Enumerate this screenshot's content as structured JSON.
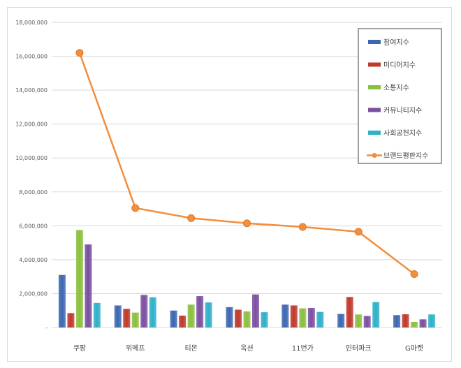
{
  "chart_data": {
    "type": "bar",
    "categories": [
      "쿠팡",
      "위메프",
      "티몬",
      "옥션",
      "11번가",
      "인터파크",
      "G마켓"
    ],
    "series": [
      {
        "name": "참여지수",
        "color": "#3c67b1",
        "values": [
          3100000,
          1300000,
          1000000,
          1200000,
          1350000,
          800000,
          730000
        ]
      },
      {
        "name": "미디어지수",
        "color": "#c0392b",
        "values": [
          850000,
          1100000,
          700000,
          1050000,
          1300000,
          1800000,
          780000
        ]
      },
      {
        "name": "소통지수",
        "color": "#8bbf3f",
        "values": [
          5750000,
          880000,
          1350000,
          950000,
          1130000,
          770000,
          330000
        ]
      },
      {
        "name": "커뮤니티지수",
        "color": "#7b4fa0",
        "values": [
          4900000,
          1920000,
          1850000,
          1950000,
          1150000,
          680000,
          480000
        ]
      },
      {
        "name": "사회공헌지수",
        "color": "#2fb0c8",
        "values": [
          1450000,
          1780000,
          1480000,
          900000,
          920000,
          1500000,
          770000
        ]
      }
    ],
    "line_series": {
      "name": "브랜드평판지수",
      "color": "#f28e3c",
      "values": [
        16200000,
        7050000,
        6450000,
        6150000,
        5930000,
        5650000,
        3150000
      ]
    },
    "y_ticks": [
      "-",
      "2,000,000",
      "4,000,000",
      "6,000,000",
      "8,000,000",
      "10,000,000",
      "12,000,000",
      "14,000,000",
      "16,000,000",
      "18,000,000"
    ],
    "ylim": [
      0,
      18000000
    ],
    "grid": true,
    "legend_position": "top-right"
  }
}
